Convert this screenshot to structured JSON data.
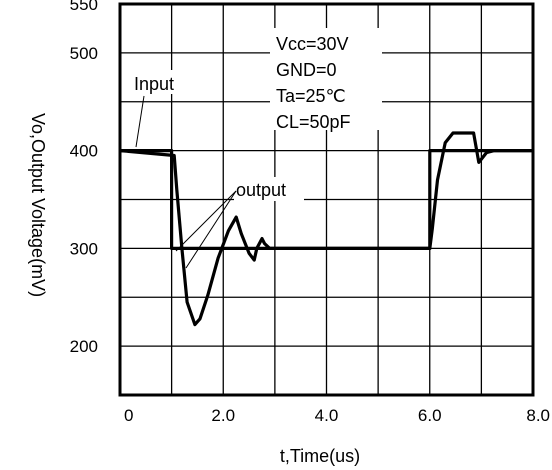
{
  "chart_data": {
    "type": "line",
    "title": "",
    "xlabel": "t,Time(us)",
    "ylabel": "Vo,Output Voltage(mV)",
    "xlim": [
      0,
      8.0
    ],
    "ylim": [
      150,
      550
    ],
    "x_ticks": [
      "0",
      "2.0",
      "4.0",
      "6.0",
      "8.0"
    ],
    "y_ticks": [
      "550",
      "500",
      "400",
      "300",
      "200"
    ],
    "grid": true,
    "conditions": [
      "Vcc=30V",
      "GND=0",
      "Ta=25℃",
      "CL=50pF"
    ],
    "annotations": [
      "Input",
      "output"
    ],
    "series": [
      {
        "name": "Input",
        "x": [
          0,
          1.0,
          1.0,
          6.0,
          6.0,
          8.0
        ],
        "y": [
          400,
          400,
          300,
          300,
          400,
          400
        ]
      },
      {
        "name": "output",
        "x": [
          0,
          1.05,
          1.1,
          1.2,
          1.3,
          1.45,
          1.55,
          1.7,
          1.9,
          2.1,
          2.25,
          2.35,
          2.5,
          2.6,
          2.65,
          2.75,
          2.8,
          2.9,
          3.1,
          6.0,
          6.05,
          6.15,
          6.3,
          6.45,
          6.6,
          6.85,
          6.95,
          7.1,
          7.25,
          8.0
        ],
        "y": [
          400,
          395,
          360,
          300,
          245,
          222,
          228,
          252,
          290,
          318,
          332,
          315,
          295,
          288,
          300,
          310,
          305,
          300,
          300,
          300,
          320,
          370,
          408,
          418,
          418,
          418,
          388,
          398,
          400,
          400
        ]
      }
    ]
  }
}
